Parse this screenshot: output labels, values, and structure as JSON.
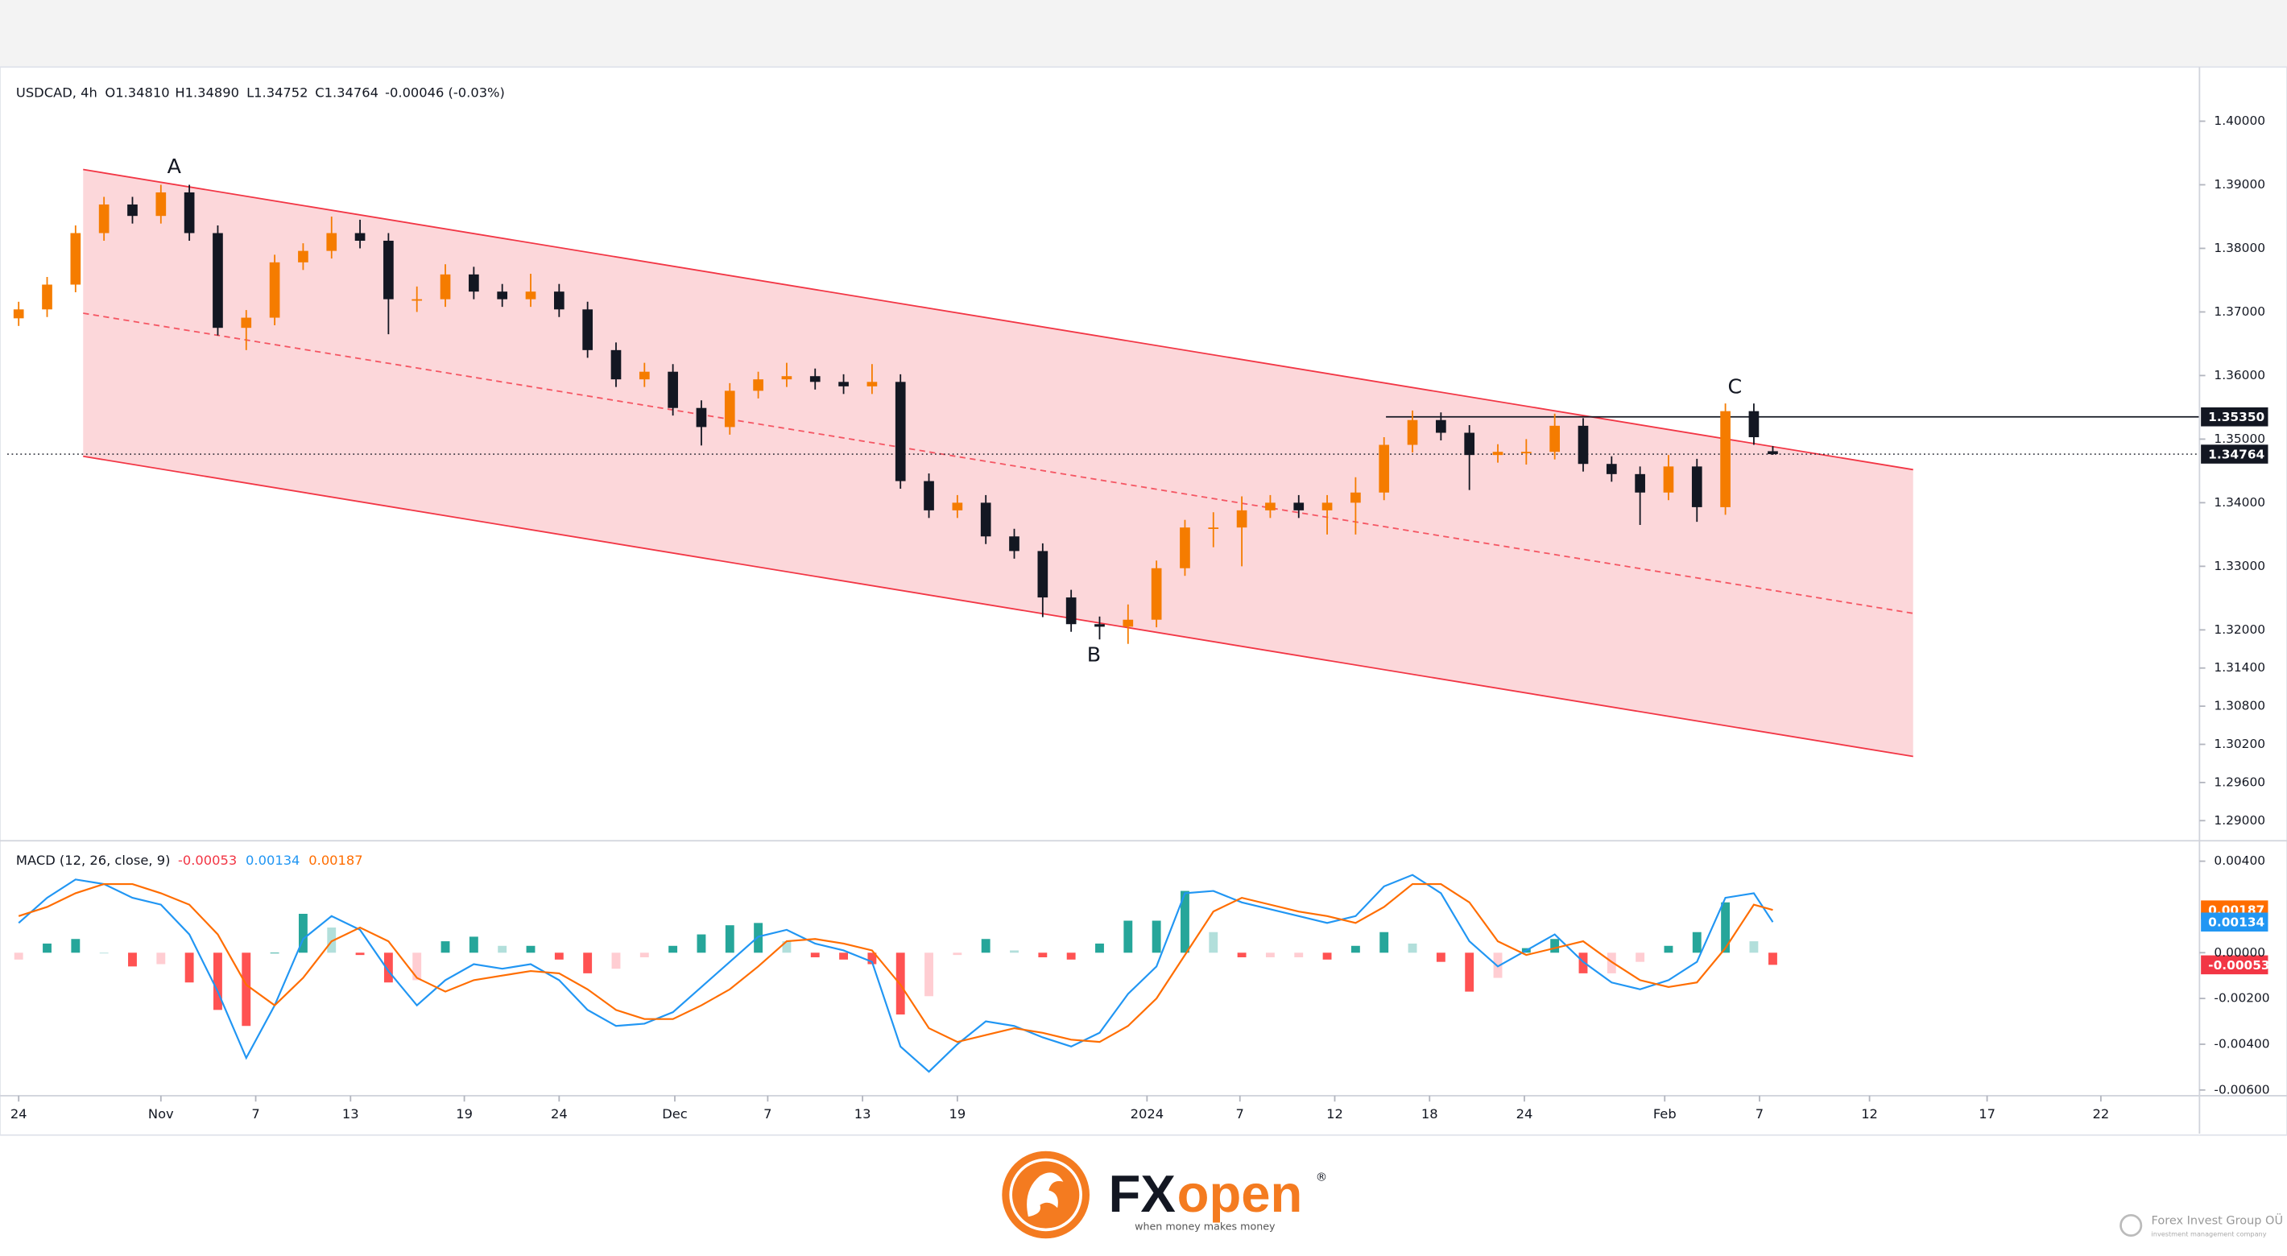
{
  "header": {
    "symbol": "USDCAD, 4h",
    "open": "O1.34810",
    "high": "H1.34890",
    "low": "L1.34752",
    "close": "C1.34764",
    "change": "-0.00046 (-0.03%)"
  },
  "footer": {
    "brand_fx": "FX",
    "brand_open": "open",
    "registered": "®",
    "tagline": "when money makes money",
    "company": "Forex Invest Group OÜ",
    "company_sub": "investment management company"
  },
  "chart_data": [
    {
      "type": "candlestick",
      "x": [
        0,
        1.5,
        3,
        4.5,
        6,
        7.5,
        9,
        10.5,
        12,
        13.5,
        15,
        16.5,
        18,
        19.5,
        21,
        22.5,
        24,
        25.5,
        27,
        28.5,
        30,
        31.5,
        33,
        34.5,
        36,
        37.5,
        39,
        40.5,
        42,
        43.5,
        45,
        46.5,
        48,
        49.5,
        51,
        52.5,
        54,
        55.5,
        57,
        58.5,
        60,
        61.5,
        63,
        64.5,
        66,
        67.5,
        69,
        70.5,
        72,
        73.5,
        75,
        76.5,
        78,
        79.5,
        81,
        82.5,
        84,
        85.5,
        87,
        88.5,
        90,
        91.5,
        92.5
      ],
      "open": [
        1.369,
        1.3704,
        1.3743,
        1.3824,
        1.3869,
        1.3851,
        1.3888,
        1.3824,
        1.3675,
        1.3691,
        1.3778,
        1.3796,
        1.3824,
        1.3812,
        1.372,
        1.372,
        1.3759,
        1.3732,
        1.372,
        1.3732,
        1.3704,
        1.364,
        1.3594,
        1.3606,
        1.3549,
        1.3519,
        1.3576,
        1.3594,
        1.3599,
        1.359,
        1.3583,
        1.359,
        1.3434,
        1.3388,
        1.34,
        1.3347,
        1.3324,
        1.3251,
        1.3209,
        1.3205,
        1.3216,
        1.3297,
        1.3361,
        1.3361,
        1.3388,
        1.34,
        1.3388,
        1.34,
        1.3416,
        1.3491,
        1.353,
        1.351,
        1.3475,
        1.348,
        1.348,
        1.3521,
        1.3461,
        1.3445,
        1.3416,
        1.3457,
        1.3393,
        1.3544,
        1.3481
      ],
      "high": [
        1.3716,
        1.3755,
        1.3836,
        1.3881,
        1.3881,
        1.39,
        1.39,
        1.3836,
        1.3703,
        1.379,
        1.3808,
        1.385,
        1.3845,
        1.3824,
        1.374,
        1.3775,
        1.3771,
        1.3744,
        1.376,
        1.3744,
        1.3716,
        1.3652,
        1.362,
        1.3618,
        1.3561,
        1.3588,
        1.3606,
        1.362,
        1.3611,
        1.3602,
        1.3618,
        1.3602,
        1.3446,
        1.3412,
        1.3412,
        1.3359,
        1.3336,
        1.3263,
        1.3221,
        1.324,
        1.3309,
        1.3373,
        1.3385,
        1.341,
        1.3412,
        1.3412,
        1.3412,
        1.344,
        1.3503,
        1.3545,
        1.3542,
        1.3522,
        1.3492,
        1.35,
        1.354,
        1.3533,
        1.3473,
        1.3457,
        1.3475,
        1.3469,
        1.3556,
        1.3556,
        1.3489
      ],
      "low": [
        1.3678,
        1.3692,
        1.3731,
        1.3812,
        1.3839,
        1.3839,
        1.3812,
        1.3663,
        1.364,
        1.3679,
        1.3766,
        1.3784,
        1.38,
        1.3665,
        1.37,
        1.3708,
        1.372,
        1.3708,
        1.3708,
        1.3692,
        1.3628,
        1.3582,
        1.3582,
        1.3537,
        1.349,
        1.3507,
        1.3564,
        1.3582,
        1.3578,
        1.3571,
        1.3571,
        1.3422,
        1.3376,
        1.3376,
        1.3335,
        1.3312,
        1.322,
        1.3197,
        1.3185,
        1.3178,
        1.3204,
        1.3285,
        1.333,
        1.33,
        1.3376,
        1.3376,
        1.335,
        1.335,
        1.3404,
        1.3479,
        1.3498,
        1.342,
        1.3463,
        1.346,
        1.3468,
        1.3449,
        1.3433,
        1.3365,
        1.3404,
        1.337,
        1.3381,
        1.3491,
        1.34752
      ],
      "close": [
        1.3704,
        1.3743,
        1.3824,
        1.3869,
        1.3851,
        1.3888,
        1.3824,
        1.3675,
        1.3691,
        1.3778,
        1.3796,
        1.3824,
        1.3812,
        1.372,
        1.372,
        1.3759,
        1.3732,
        1.372,
        1.3732,
        1.3704,
        1.364,
        1.3594,
        1.3606,
        1.3549,
        1.3519,
        1.3576,
        1.3594,
        1.3599,
        1.359,
        1.3583,
        1.359,
        1.3434,
        1.3388,
        1.34,
        1.3347,
        1.3324,
        1.3251,
        1.3209,
        1.3205,
        1.3216,
        1.3297,
        1.3361,
        1.3361,
        1.3388,
        1.34,
        1.3388,
        1.34,
        1.3416,
        1.3491,
        1.353,
        1.351,
        1.3475,
        1.348,
        1.348,
        1.3521,
        1.3461,
        1.3445,
        1.3416,
        1.3457,
        1.3393,
        1.3544,
        1.3503,
        1.34764
      ],
      "up_color": "#f57c00",
      "down_color": "#131722",
      "xlim": [
        -0.6,
        115
      ],
      "ylim": [
        1.2873,
        1.4076
      ],
      "yticks": [
        {
          "value": 1.4,
          "label": "1.40000"
        },
        {
          "value": 1.39,
          "label": "1.39000"
        },
        {
          "value": 1.38,
          "label": "1.38000"
        },
        {
          "value": 1.37,
          "label": "1.37000"
        },
        {
          "value": 1.36,
          "label": "1.36000"
        },
        {
          "value": 1.35,
          "label": "1.35000"
        },
        {
          "value": 1.34,
          "label": "1.34000"
        },
        {
          "value": 1.33,
          "label": "1.33000"
        },
        {
          "value": 1.32,
          "label": "1.32000"
        },
        {
          "value": 1.314,
          "label": "1.31400"
        },
        {
          "value": 1.308,
          "label": "1.30800"
        },
        {
          "value": 1.302,
          "label": "1.30200"
        },
        {
          "value": 1.296,
          "label": "1.29600"
        },
        {
          "value": 1.29,
          "label": "1.29000"
        }
      ],
      "grid": false,
      "channel": {
        "x": [
          3.4,
          99.9
        ],
        "upper": [
          1.3924,
          1.3452
        ],
        "mid": [
          1.3698,
          1.3226
        ],
        "lower": [
          1.3473,
          1.3001
        ],
        "color": "#f23645"
      },
      "level": {
        "value": 1.3535,
        "x_start": 72.1,
        "color": "#131722"
      },
      "price_tags": [
        {
          "value": 1.3535,
          "label": "1.35350",
          "color": "#131722"
        },
        {
          "value": 1.34764,
          "label": "1.34764",
          "color": "#131722"
        }
      ],
      "annotations": [
        {
          "text": "A",
          "x": 8.2,
          "y": 1.3927
        },
        {
          "text": "B",
          "x": 56.7,
          "y": 1.3159
        },
        {
          "text": "C",
          "x": 90.5,
          "y": 1.3581
        }
      ]
    },
    {
      "type": "macd",
      "title": "MACD (12, 26, close, 9)",
      "legend_values": [
        {
          "value": -0.00053,
          "label": "-0.00053",
          "color": "#f23645"
        },
        {
          "value": 0.00134,
          "label": "0.00134",
          "color": "#2196f3"
        },
        {
          "value": 0.00187,
          "label": "0.00187",
          "color": "#ff6d00"
        }
      ],
      "x": [
        0,
        1.5,
        3,
        4.5,
        6,
        7.5,
        9,
        10.5,
        12,
        13.5,
        15,
        16.5,
        18,
        19.5,
        21,
        22.5,
        24,
        25.5,
        27,
        28.5,
        30,
        31.5,
        33,
        34.5,
        36,
        37.5,
        39,
        40.5,
        42,
        43.5,
        45,
        46.5,
        48,
        49.5,
        51,
        52.5,
        54,
        55.5,
        57,
        58.5,
        60,
        61.5,
        63,
        64.5,
        66,
        67.5,
        69,
        70.5,
        72,
        73.5,
        75,
        76.5,
        78,
        79.5,
        81,
        82.5,
        84,
        85.5,
        87,
        88.5,
        90,
        91.5,
        92.5
      ],
      "macd": {
        "color": "#2196f3",
        "values": [
          0.0013,
          0.0024,
          0.0032,
          0.003,
          0.0024,
          0.0021,
          0.0008,
          -0.0017,
          -0.0046,
          -0.0023,
          0.0006,
          0.0016,
          0.001,
          -0.0008,
          -0.0023,
          -0.0012,
          -0.0005,
          -0.0007,
          -0.0005,
          -0.0012,
          -0.0025,
          -0.0032,
          -0.0031,
          -0.0026,
          -0.0015,
          -0.0004,
          0.0007,
          0.001,
          0.0004,
          0.0001,
          -0.0004,
          -0.0041,
          -0.0052,
          -0.004,
          -0.003,
          -0.0032,
          -0.0037,
          -0.0041,
          -0.0035,
          -0.0018,
          -0.0006,
          0.0026,
          0.0027,
          0.0022,
          0.0019,
          0.0016,
          0.0013,
          0.0016,
          0.0029,
          0.0034,
          0.0026,
          0.0005,
          -0.0006,
          0.0001,
          0.0008,
          -0.0004,
          -0.0013,
          -0.0016,
          -0.0012,
          -0.0004,
          0.0024,
          0.0026,
          0.00134
        ]
      },
      "signal": {
        "color": "#ff6d00",
        "values": [
          0.0016,
          0.002,
          0.0026,
          0.003,
          0.003,
          0.0026,
          0.0021,
          0.0008,
          -0.0014,
          -0.0023,
          -0.0011,
          0.0005,
          0.0011,
          0.0005,
          -0.0011,
          -0.0017,
          -0.0012,
          -0.001,
          -0.0008,
          -0.0009,
          -0.0016,
          -0.0025,
          -0.0029,
          -0.0029,
          -0.0023,
          -0.0016,
          -0.0006,
          0.0005,
          0.0006,
          0.0004,
          0.0001,
          -0.0014,
          -0.0033,
          -0.0039,
          -0.0036,
          -0.0033,
          -0.0035,
          -0.0038,
          -0.0039,
          -0.0032,
          -0.002,
          -0.0001,
          0.0018,
          0.0024,
          0.0021,
          0.0018,
          0.0016,
          0.0013,
          0.002,
          0.003,
          0.003,
          0.0022,
          0.0005,
          -0.0001,
          0.0002,
          0.0005,
          -0.0004,
          -0.0012,
          -0.0015,
          -0.0013,
          0.0002,
          0.0021,
          0.00187
        ]
      },
      "histogram": {
        "colors": [
          "#26a69a",
          "#b2dfdb",
          "#ff5252",
          "#ffcdd2"
        ],
        "values": [
          -0.0003,
          0.0004,
          0.0006,
          0,
          -0.0006,
          -0.0005,
          -0.0013,
          -0.0025,
          -0.0032,
          0,
          0.0017,
          0.0011,
          -0.0001,
          -0.0013,
          -0.0012,
          0.0005,
          0.0007,
          0.0003,
          0.0003,
          -0.0003,
          -0.0009,
          -0.0007,
          -0.0002,
          0.0003,
          0.0008,
          0.0012,
          0.0013,
          0.0005,
          -0.0002,
          -0.0003,
          -0.0005,
          -0.0027,
          -0.0019,
          -0.0001,
          0.0006,
          0.0001,
          -0.0002,
          -0.0003,
          0.0004,
          0.0014,
          0.0014,
          0.0027,
          0.0009,
          -0.0002,
          -0.0002,
          -0.0002,
          -0.0003,
          0.0003,
          0.0009,
          0.0004,
          -0.0004,
          -0.0017,
          -0.0011,
          0.0002,
          0.0006,
          -0.0009,
          -0.0009,
          -0.0004,
          0.0003,
          0.0009,
          0.0022,
          0.0005,
          -0.00053
        ]
      },
      "xlim": [
        -0.6,
        115
      ],
      "ylim": [
        -0.00625,
        0.00483
      ],
      "yticks": [
        {
          "value": 0.004,
          "label": "0.00400"
        },
        {
          "value": 0,
          "label": "0.00000"
        },
        {
          "value": -0.002,
          "label": "-0.00200"
        },
        {
          "value": -0.004,
          "label": "-0.00400"
        },
        {
          "value": -0.006,
          "label": "-0.00600"
        }
      ],
      "xticks": [
        {
          "value": 0,
          "label": "24"
        },
        {
          "value": 7.5,
          "label": "Nov"
        },
        {
          "value": 12.5,
          "label": "7"
        },
        {
          "value": 17.5,
          "label": "13"
        },
        {
          "value": 23.5,
          "label": "19"
        },
        {
          "value": 28.5,
          "label": "24"
        },
        {
          "value": 34.6,
          "label": "Dec"
        },
        {
          "value": 39.5,
          "label": "7"
        },
        {
          "value": 44.5,
          "label": "13"
        },
        {
          "value": 49.5,
          "label": "19"
        },
        {
          "value": 59.5,
          "label": "2024"
        },
        {
          "value": 64.4,
          "label": "7"
        },
        {
          "value": 69.4,
          "label": "12"
        },
        {
          "value": 74.4,
          "label": "18"
        },
        {
          "value": 79.4,
          "label": "24"
        },
        {
          "value": 86.8,
          "label": "Feb"
        },
        {
          "value": 91.8,
          "label": "7"
        },
        {
          "value": 97.6,
          "label": "12"
        },
        {
          "value": 103.8,
          "label": "17"
        },
        {
          "value": 109.8,
          "label": "22"
        }
      ],
      "price_tags": [
        {
          "value": 0.00187,
          "label": "0.00187",
          "color": "#ff6d00"
        },
        {
          "value": 0.00134,
          "label": "0.00134",
          "color": "#2196f3"
        },
        {
          "value": -0.00053,
          "label": "-0.00053",
          "color": "#f23645"
        }
      ]
    }
  ]
}
